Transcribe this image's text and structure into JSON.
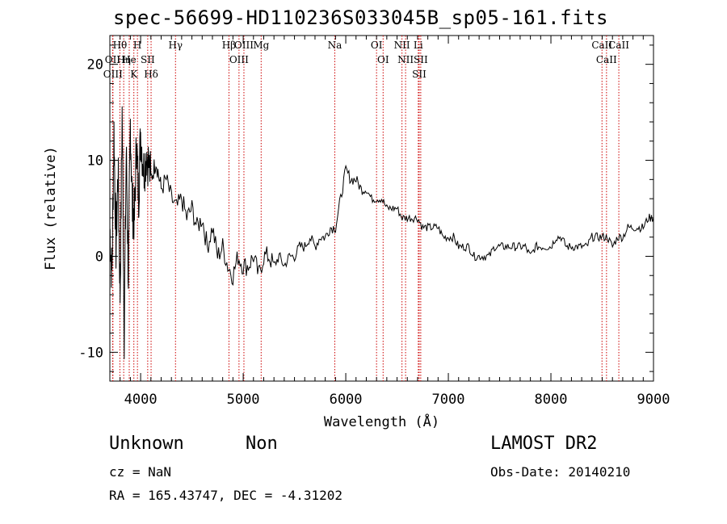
{
  "header": {
    "title": "spec-56699-HD110236S033045B_sp05-161.fits"
  },
  "info": {
    "object_class": "Unknown",
    "object_subclass": "Non",
    "survey": "LAMOST DR2",
    "cz_text": "cz = NaN",
    "obs_date_text": "Obs-Date: 20140210",
    "radec_text": "RA = 165.43747, DEC =  -4.31202"
  },
  "chart_data": {
    "type": "line",
    "title": "spec-56699-HD110236S033045B_sp05-161.fits",
    "xlabel": "Wavelength (Å)",
    "ylabel": "Flux (relative)",
    "xlim": [
      3700,
      9000
    ],
    "ylim": [
      -13,
      23
    ],
    "xticks": [
      4000,
      5000,
      6000,
      7000,
      8000,
      9000
    ],
    "yticks": [
      -10,
      0,
      10,
      20
    ],
    "grid": false,
    "line_color": "#000000",
    "marker_color": "#cc0000",
    "series": [
      {
        "x": [
          3700,
          3720,
          3740,
          3760,
          3780,
          3800,
          3820,
          3840,
          3860,
          3880,
          3900,
          3920,
          3940,
          3960,
          3980,
          4000,
          4030,
          4060,
          4100,
          4150,
          4200,
          4250,
          4300,
          4350,
          4400,
          4450,
          4500,
          4550,
          4600,
          4650,
          4700,
          4750,
          4800,
          4850,
          4900,
          4950,
          5000,
          5050,
          5100,
          5150,
          5200,
          5250,
          5300,
          5350,
          5400,
          5450,
          5500,
          5550,
          5600,
          5650,
          5700,
          5750,
          5800,
          5850,
          5900,
          5950,
          6000,
          6050,
          6100,
          6150,
          6200,
          6250,
          6300,
          6350,
          6400,
          6450,
          6500,
          6550,
          6600,
          6650,
          6700,
          6750,
          6800,
          6850,
          6900,
          6950,
          7000,
          7050,
          7100,
          7150,
          7200,
          7250,
          7300,
          7350,
          7400,
          7450,
          7500,
          7550,
          7600,
          7650,
          7700,
          7750,
          7800,
          7850,
          7900,
          7950,
          8000,
          8050,
          8100,
          8150,
          8200,
          8250,
          8300,
          8350,
          8400,
          8450,
          8500,
          8550,
          8600,
          8650,
          8700,
          8750,
          8800,
          8850,
          8900,
          8950,
          9000
        ],
        "values": [
          3,
          -2,
          13,
          1,
          9,
          -4,
          15,
          -8,
          11,
          -2,
          14,
          5,
          4,
          12,
          6,
          13,
          9,
          11,
          8,
          10,
          7,
          8,
          6,
          5,
          6,
          4,
          5,
          3,
          4,
          1,
          3,
          0,
          1,
          -1,
          -2,
          0,
          -1,
          -1,
          0,
          -2,
          0,
          0,
          -1,
          0,
          -1,
          0,
          0,
          1,
          1,
          2,
          1,
          2,
          2,
          3,
          3,
          6,
          9,
          8,
          8,
          7,
          7,
          6,
          6,
          6,
          5,
          5,
          5,
          4,
          4,
          4,
          4,
          3,
          3,
          3,
          3,
          2,
          2,
          2,
          1,
          1,
          1,
          0,
          0,
          0,
          0,
          1,
          1,
          1,
          1,
          1,
          1,
          1,
          0,
          1,
          1,
          1,
          1,
          2,
          2,
          1,
          1,
          1,
          1,
          1,
          2,
          2,
          2,
          2,
          1,
          2,
          2,
          3,
          3,
          3,
          3,
          4,
          4
        ]
      }
    ],
    "lines": [
      {
        "label": "Hθ",
        "wl": 3798
      },
      {
        "label": "OII",
        "wl": 3727
      },
      {
        "label": "OIII",
        "wl": 3730
      },
      {
        "label": "He",
        "wl": 3889
      },
      {
        "label": "Hη",
        "wl": 3835
      },
      {
        "label": "K",
        "wl": 3934
      },
      {
        "label": "H",
        "wl": 3969
      },
      {
        "label": "SII",
        "wl": 4069
      },
      {
        "label": "Hδ",
        "wl": 4102
      },
      {
        "label": "Hγ",
        "wl": 4340
      },
      {
        "label": "Hβ",
        "wl": 4861
      },
      {
        "label": "OIII",
        "wl": 4959
      },
      {
        "label": "OIII",
        "wl": 5007
      },
      {
        "label": "Mg",
        "wl": 5175
      },
      {
        "label": "Na",
        "wl": 5893
      },
      {
        "label": "OI",
        "wl": 6300
      },
      {
        "label": "OI",
        "wl": 6364
      },
      {
        "label": "NII",
        "wl": 6548
      },
      {
        "label": "NII",
        "wl": 6583
      },
      {
        "label": "Li",
        "wl": 6707
      },
      {
        "label": "SII",
        "wl": 6716
      },
      {
        "label": "SII",
        "wl": 6731
      },
      {
        "label": "CaII",
        "wl": 8498
      },
      {
        "label": "CaII",
        "wl": 8542
      },
      {
        "label": "CaII",
        "wl": 8662
      }
    ]
  }
}
